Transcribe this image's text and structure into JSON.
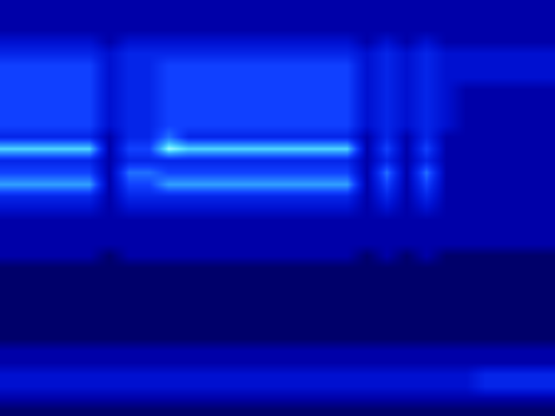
{
  "chart_data": {
    "type": "heatmap",
    "tick_labels": false,
    "grid": false,
    "xlim": [
      -0.5,
      27.5
    ],
    "ylim": [
      34.5,
      -0.5
    ],
    "zlim": [
      0,
      10
    ],
    "cells": [
      [
        3,
        3,
        3,
        3,
        3,
        3,
        3,
        3,
        3,
        3,
        3,
        3,
        3,
        3,
        3,
        3,
        3,
        3,
        3,
        3,
        3,
        3,
        3,
        3,
        3,
        3,
        3,
        3
      ],
      [
        3,
        3,
        3,
        3,
        3,
        3,
        3,
        3,
        3,
        3,
        3,
        3,
        3,
        3,
        3,
        3,
        3,
        3,
        3,
        3,
        3,
        3,
        3,
        3,
        3,
        3,
        3,
        3
      ],
      [
        3,
        3,
        3,
        3,
        3,
        3,
        3,
        3,
        3,
        3,
        3,
        3,
        3,
        3,
        3,
        3,
        3,
        3,
        3,
        3,
        3,
        3,
        3,
        3,
        3,
        3,
        3,
        3
      ],
      [
        4,
        4,
        4,
        4,
        4,
        3,
        4,
        4,
        4,
        4,
        4,
        4,
        4,
        4,
        4,
        4,
        4,
        4,
        3,
        4,
        3,
        4,
        3,
        3,
        3,
        3,
        3,
        3
      ],
      [
        5,
        5,
        5,
        5,
        5,
        4,
        5,
        5,
        5,
        5,
        5,
        5,
        5,
        5,
        5,
        5,
        5,
        5,
        4,
        5,
        4,
        5,
        4,
        4,
        4,
        4,
        4,
        4
      ],
      [
        6,
        6,
        6,
        6,
        6,
        4,
        5,
        5,
        6,
        6,
        6,
        6,
        6,
        6,
        6,
        6,
        6,
        6,
        4,
        5,
        4,
        5,
        4,
        4,
        4,
        4,
        4,
        4
      ],
      [
        6,
        6,
        6,
        6,
        6,
        4,
        5,
        5,
        6,
        6,
        6,
        6,
        6,
        6,
        6,
        6,
        6,
        6,
        4,
        5,
        4,
        5,
        4,
        4,
        4,
        4,
        4,
        4
      ],
      [
        6,
        6,
        6,
        6,
        6,
        4,
        5,
        5,
        6,
        6,
        6,
        6,
        6,
        6,
        6,
        6,
        6,
        6,
        4,
        5,
        4,
        5,
        4,
        3,
        3,
        3,
        3,
        3
      ],
      [
        6,
        6,
        6,
        6,
        6,
        4,
        5,
        5,
        6,
        6,
        6,
        6,
        6,
        6,
        6,
        6,
        6,
        6,
        4,
        5,
        4,
        5,
        4,
        3,
        3,
        3,
        3,
        3
      ],
      [
        6,
        6,
        6,
        6,
        6,
        4,
        5,
        5,
        6,
        6,
        6,
        6,
        6,
        6,
        6,
        6,
        6,
        6,
        4,
        5,
        4,
        5,
        4,
        3,
        3,
        3,
        3,
        3
      ],
      [
        6,
        6,
        6,
        6,
        6,
        4,
        5,
        5,
        6,
        6,
        6,
        6,
        6,
        6,
        6,
        6,
        6,
        6,
        4,
        5,
        4,
        5,
        4,
        3,
        3,
        3,
        3,
        3
      ],
      [
        5,
        5,
        5,
        5,
        5,
        3,
        5,
        5,
        7,
        5,
        5,
        5,
        5,
        5,
        5,
        5,
        5,
        5,
        3,
        5,
        3,
        5,
        3,
        3,
        3,
        3,
        3,
        3
      ],
      [
        9,
        9,
        9,
        9,
        9,
        3,
        6,
        6,
        10,
        9,
        9,
        9,
        9,
        9,
        9,
        9,
        9,
        9,
        3,
        6,
        3,
        6,
        3,
        3,
        3,
        3,
        3,
        3
      ],
      [
        5,
        5,
        5,
        5,
        5,
        3,
        5,
        5,
        5,
        5,
        5,
        5,
        5,
        5,
        5,
        5,
        5,
        5,
        3,
        5,
        3,
        5,
        3,
        3,
        3,
        3,
        3,
        3
      ],
      [
        6,
        6,
        6,
        6,
        6,
        3,
        7,
        7,
        6,
        6,
        6,
        6,
        6,
        6,
        6,
        6,
        6,
        6,
        3,
        7,
        3,
        7,
        3,
        3,
        3,
        3,
        3,
        3
      ],
      [
        8,
        8,
        8,
        8,
        8,
        3,
        6,
        6,
        8,
        8,
        8,
        8,
        8,
        8,
        8,
        8,
        8,
        8,
        3,
        6,
        3,
        6,
        3,
        3,
        3,
        3,
        3,
        3
      ],
      [
        5,
        5,
        5,
        5,
        5,
        3,
        5,
        5,
        5,
        5,
        5,
        5,
        5,
        5,
        5,
        5,
        5,
        5,
        3,
        5,
        3,
        5,
        3,
        3,
        3,
        3,
        3,
        3
      ],
      [
        4,
        4,
        4,
        4,
        4,
        3,
        4,
        4,
        4,
        4,
        4,
        4,
        4,
        4,
        4,
        4,
        4,
        4,
        3,
        4,
        3,
        4,
        3,
        3,
        3,
        3,
        3,
        3
      ],
      [
        3,
        3,
        3,
        3,
        3,
        3,
        3,
        3,
        3,
        3,
        3,
        3,
        3,
        3,
        3,
        3,
        3,
        3,
        3,
        3,
        3,
        3,
        3,
        3,
        3,
        3,
        3,
        3
      ],
      [
        3,
        3,
        3,
        3,
        3,
        3,
        3,
        3,
        3,
        3,
        3,
        3,
        3,
        3,
        3,
        3,
        3,
        3,
        3,
        3,
        3,
        3,
        3,
        3,
        3,
        3,
        3,
        3
      ],
      [
        3,
        3,
        3,
        3,
        3,
        3,
        3,
        3,
        3,
        3,
        3,
        3,
        3,
        3,
        3,
        3,
        3,
        3,
        3,
        3,
        3,
        3,
        3,
        3,
        3,
        3,
        3,
        3
      ],
      [
        3,
        3,
        3,
        3,
        3,
        2,
        3,
        3,
        3,
        3,
        3,
        3,
        3,
        3,
        3,
        3,
        3,
        3,
        2,
        3,
        2,
        3,
        2,
        2,
        2,
        2,
        2,
        2
      ],
      [
        2,
        2,
        2,
        2,
        2,
        2,
        2,
        2,
        2,
        2,
        2,
        2,
        2,
        2,
        2,
        2,
        2,
        2,
        2,
        2,
        2,
        2,
        2,
        2,
        2,
        2,
        2,
        2
      ],
      [
        2,
        2,
        2,
        2,
        2,
        2,
        2,
        2,
        2,
        2,
        2,
        2,
        2,
        2,
        2,
        2,
        2,
        2,
        2,
        2,
        2,
        2,
        2,
        2,
        2,
        2,
        2,
        2
      ],
      [
        2,
        2,
        2,
        2,
        2,
        2,
        2,
        2,
        2,
        2,
        2,
        2,
        2,
        2,
        2,
        2,
        2,
        2,
        2,
        2,
        2,
        2,
        2,
        2,
        2,
        2,
        2,
        2
      ],
      [
        2,
        2,
        2,
        2,
        2,
        2,
        2,
        2,
        2,
        2,
        2,
        2,
        2,
        2,
        2,
        2,
        2,
        2,
        2,
        2,
        2,
        2,
        2,
        2,
        2,
        2,
        2,
        2
      ],
      [
        2,
        2,
        2,
        2,
        2,
        2,
        2,
        2,
        2,
        2,
        2,
        2,
        2,
        2,
        2,
        2,
        2,
        2,
        2,
        2,
        2,
        2,
        2,
        2,
        2,
        2,
        2,
        2
      ],
      [
        2,
        2,
        2,
        2,
        2,
        2,
        2,
        2,
        2,
        2,
        2,
        2,
        2,
        2,
        2,
        2,
        2,
        2,
        2,
        2,
        2,
        2,
        2,
        2,
        2,
        2,
        2,
        2
      ],
      [
        2,
        2,
        2,
        2,
        2,
        2,
        2,
        2,
        2,
        2,
        2,
        2,
        2,
        2,
        2,
        2,
        2,
        2,
        2,
        2,
        2,
        2,
        2,
        2,
        2,
        2,
        2,
        2
      ],
      [
        3,
        3,
        3,
        3,
        3,
        3,
        3,
        3,
        3,
        3,
        3,
        3,
        3,
        3,
        3,
        3,
        3,
        3,
        3,
        3,
        3,
        3,
        3,
        3,
        3,
        3,
        3,
        3
      ],
      [
        3,
        3,
        3,
        3,
        3,
        3,
        3,
        3,
        3,
        3,
        3,
        3,
        3,
        3,
        3,
        3,
        3,
        3,
        3,
        3,
        3,
        3,
        3,
        3,
        3,
        3,
        3,
        3
      ],
      [
        4,
        4,
        4,
        4,
        4,
        4,
        4,
        4,
        4,
        4,
        4,
        4,
        4,
        4,
        4,
        4,
        4,
        4,
        4,
        4,
        4,
        4,
        4,
        4,
        5,
        5,
        5,
        5
      ],
      [
        4,
        4,
        4,
        4,
        4,
        4,
        4,
        4,
        4,
        4,
        4,
        4,
        4,
        4,
        4,
        4,
        4,
        4,
        4,
        4,
        4,
        4,
        4,
        4,
        5,
        5,
        5,
        5
      ],
      [
        3,
        3,
        3,
        3,
        3,
        3,
        3,
        3,
        3,
        3,
        3,
        3,
        3,
        3,
        3,
        3,
        3,
        3,
        3,
        3,
        3,
        3,
        3,
        3,
        3,
        3,
        3,
        3
      ],
      [
        2,
        2,
        2,
        2,
        2,
        2,
        2,
        2,
        2,
        2,
        2,
        2,
        2,
        2,
        2,
        2,
        2,
        2,
        2,
        2,
        2,
        2,
        2,
        2,
        2,
        2,
        2,
        2
      ]
    ]
  }
}
